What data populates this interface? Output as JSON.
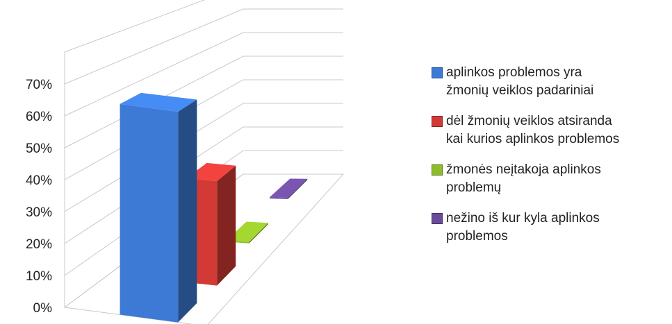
{
  "chart_data": {
    "type": "bar",
    "style": "3d-column",
    "categories": [
      "aplinkos problemos yra žmonių veiklos padariniai",
      "dėl žmonių veiklos atsiranda kai kurios aplinkos problemos",
      "žmonės neįtakoja aplinkos problemų",
      "nežino iš kur kyla aplinkos problemos"
    ],
    "values": [
      66,
      35,
      0,
      0
    ],
    "unit": "%",
    "y_ticks": [
      "0%",
      "10%",
      "20%",
      "30%",
      "40%",
      "50%",
      "60%",
      "70%"
    ],
    "ylim": [
      0,
      70
    ],
    "grid": true,
    "legend_position": "right",
    "colors": [
      "#3d7ad5",
      "#d33a36",
      "#8fbc2a",
      "#6a4b9b"
    ]
  },
  "legend": {
    "items": [
      {
        "line1": "aplinkos problemos yra",
        "line2": "žmonių veiklos padariniai",
        "color": "#3d7ad5"
      },
      {
        "line1": "dėl žmonių veiklos atsiranda",
        "line2": "kai kurios aplinkos problemos",
        "color": "#d33a36"
      },
      {
        "line1": "žmonės neįtakoja aplinkos",
        "line2": "problemų",
        "color": "#8fbc2a"
      },
      {
        "line1": "nežino iš kur kyla aplinkos",
        "line2": "problemos",
        "color": "#6a4b9b"
      }
    ]
  }
}
